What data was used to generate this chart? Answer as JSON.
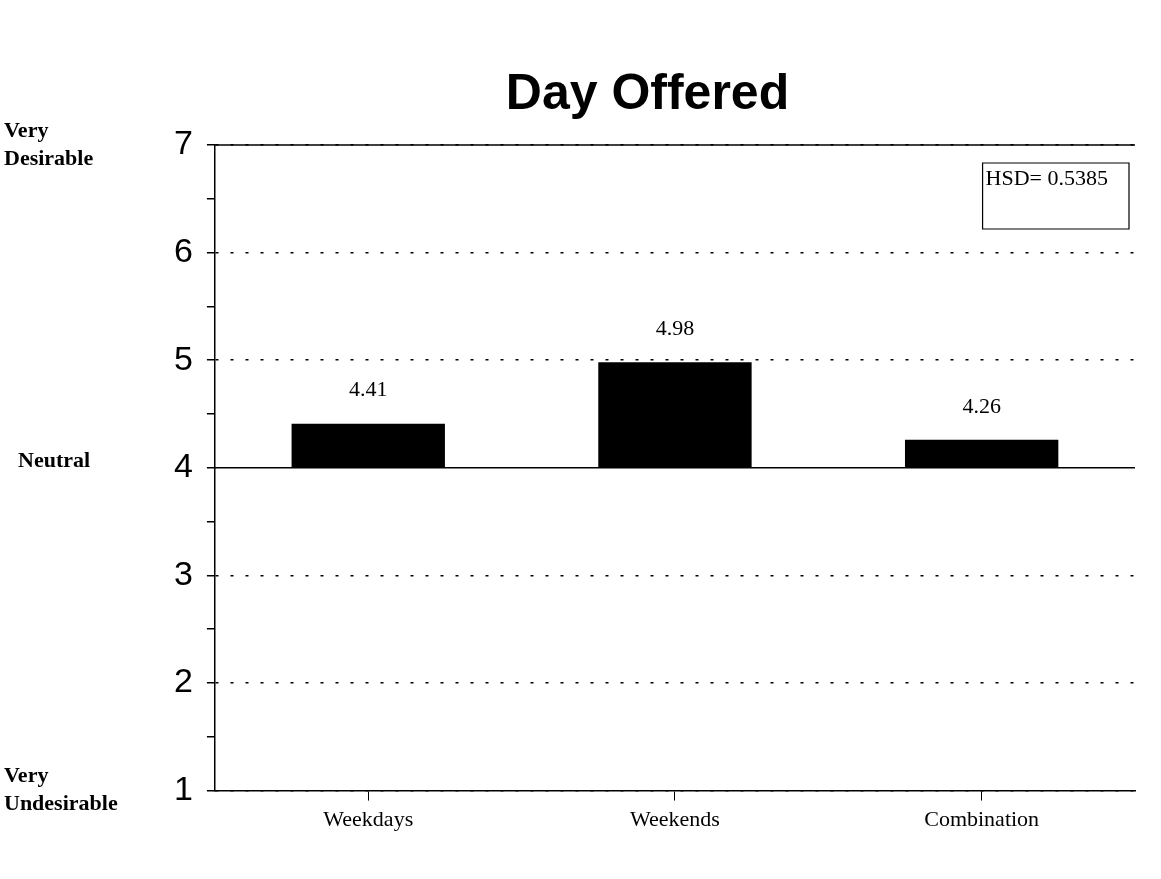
{
  "chart_data": {
    "type": "bar",
    "title": "Day Offered",
    "categories": [
      "Weekdays",
      "Weekends",
      "Combination"
    ],
    "base": [
      4,
      4,
      4
    ],
    "values": [
      0.41,
      0.98,
      0.26
    ],
    "value_labels": [
      "4.41",
      "4.98",
      "4.26"
    ],
    "color": "#000000",
    "ylim": [
      1,
      7
    ],
    "yticks": [
      1,
      {
        "value": 1.5,
        "label": null
      },
      2,
      {
        "value": 2.5,
        "label": null
      },
      3,
      {
        "value": 3.5,
        "label": null
      },
      4,
      {
        "value": 4.5,
        "label": null
      },
      5,
      {
        "value": 5.5,
        "label": null
      },
      6,
      {
        "value": 6.5,
        "label": null
      },
      7
    ],
    "grid": "y",
    "ref_lines": [
      {
        "axis": "y",
        "value": 4,
        "label": "Neutral"
      }
    ],
    "annotations": [
      "Very Desirable",
      "Very Undesirable",
      "HSD= 0.5385"
    ],
    "legend": false
  }
}
